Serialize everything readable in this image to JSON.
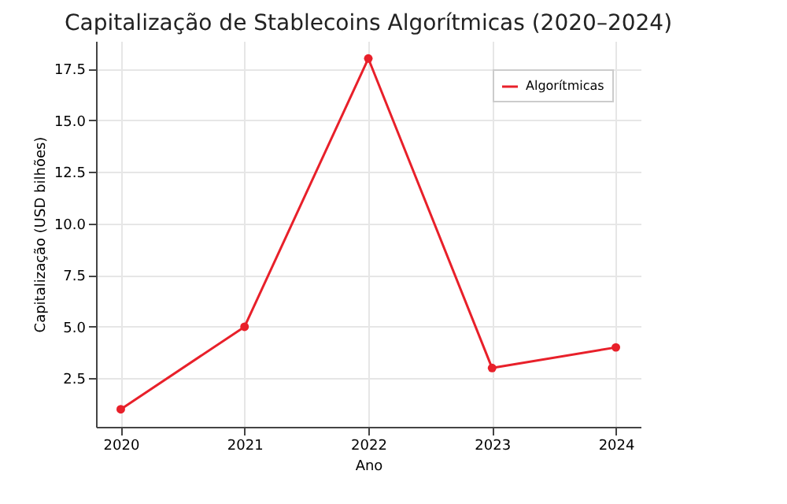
{
  "chart_data": {
    "type": "line",
    "title": "Capitalização de Stablecoins Algorítmicas (2020–2024)",
    "xlabel": "Ano",
    "ylabel": "Capitalização (USD bilhões)",
    "x": [
      2020,
      2021,
      2022,
      2023,
      2024
    ],
    "series": [
      {
        "name": "Algorítmicas",
        "color": "#e8202a",
        "values": [
          1.0,
          5.0,
          18.0,
          3.0,
          4.0
        ]
      }
    ],
    "xlim": [
      2019.8,
      2024.2
    ],
    "xticks": [
      2020,
      2021,
      2022,
      2023,
      2024
    ],
    "ylim": [
      0.15,
      18.85
    ],
    "yticks": [
      2.5,
      {
        "value": 5,
        "label": "5.0"
      },
      7.5,
      {
        "value": 10,
        "label": "10.0"
      },
      12.5,
      {
        "value": 15,
        "label": "15.0"
      },
      17.5
    ],
    "grid": true,
    "legend": "top right",
    "marker": "circle",
    "line_style": "solid"
  }
}
